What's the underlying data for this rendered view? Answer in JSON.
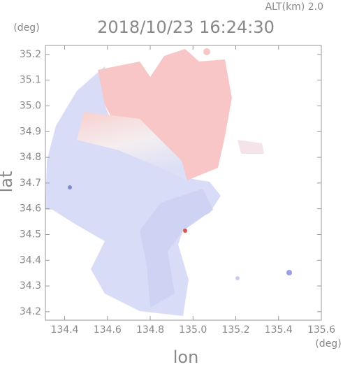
{
  "chart_data": {
    "type": "map",
    "title": "2018/10/23 16:24:30",
    "subtitle": "ALT(km) 2.0",
    "x_label": "lon",
    "y_label": "lat",
    "x_unit": "(deg)",
    "y_unit": "(deg)",
    "xlim": [
      134.31,
      135.6
    ],
    "ylim": [
      34.167,
      35.235
    ],
    "xticks": [
      134.4,
      134.6,
      134.8,
      {
        "value": 135,
        "label": "135.0"
      },
      135.2,
      135.4,
      135.6
    ],
    "yticks": [
      {
        "value": 34.2,
        "label": "34.2"
      },
      34.3,
      34.4,
      34.5,
      34.6,
      34.7,
      34.8,
      34.9,
      {
        "value": 35,
        "label": "35.0"
      },
      35.1,
      35.2
    ]
  }
}
